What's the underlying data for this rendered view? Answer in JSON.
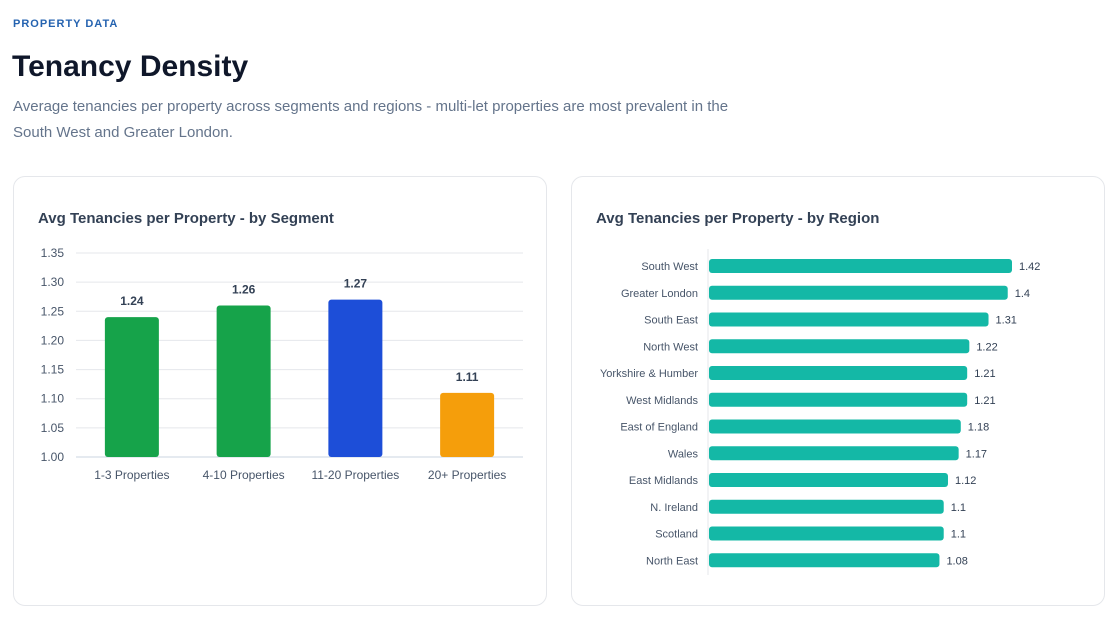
{
  "header": {
    "eyebrow": "PROPERTY DATA",
    "title": "Tenancy Density",
    "subtitle": "Average tenancies per property across segments and regions - multi-let properties are most prevalent in the South West and Greater London."
  },
  "chart_data": [
    {
      "type": "bar",
      "title": "Avg Tenancies per Property - by Segment",
      "categories": [
        "1-3 Properties",
        "4-10 Properties",
        "11-20 Properties",
        "20+ Properties"
      ],
      "values": [
        1.24,
        1.26,
        1.27,
        1.11
      ],
      "colors": [
        "#16a34a",
        "#16a34a",
        "#1d4ed8",
        "#f59e0b"
      ],
      "ylim": [
        1.0,
        1.35
      ],
      "yticks": [
        "1.00",
        "1.05",
        "1.10",
        "1.15",
        "1.20",
        "1.25",
        "1.30",
        "1.35"
      ],
      "data_labels": [
        "1.24",
        "1.26",
        "1.27",
        "1.11"
      ],
      "grid": true
    },
    {
      "type": "bar",
      "orientation": "horizontal",
      "title": "Avg Tenancies per Property - by Region",
      "categories": [
        "South West",
        "Greater London",
        "South East",
        "North West",
        "Yorkshire & Humber",
        "West Midlands",
        "East of England",
        "Wales",
        "East Midlands",
        "N. Ireland",
        "Scotland",
        "North East"
      ],
      "values": [
        1.42,
        1.4,
        1.31,
        1.22,
        1.21,
        1.21,
        1.18,
        1.17,
        1.12,
        1.1,
        1.1,
        1.08
      ],
      "data_labels": [
        "1.42",
        "1.4",
        "1.31",
        "1.22",
        "1.21",
        "1.21",
        "1.18",
        "1.17",
        "1.12",
        "1.1",
        "1.1",
        "1.08"
      ],
      "color": "#14b8a6",
      "grid": false
    }
  ]
}
